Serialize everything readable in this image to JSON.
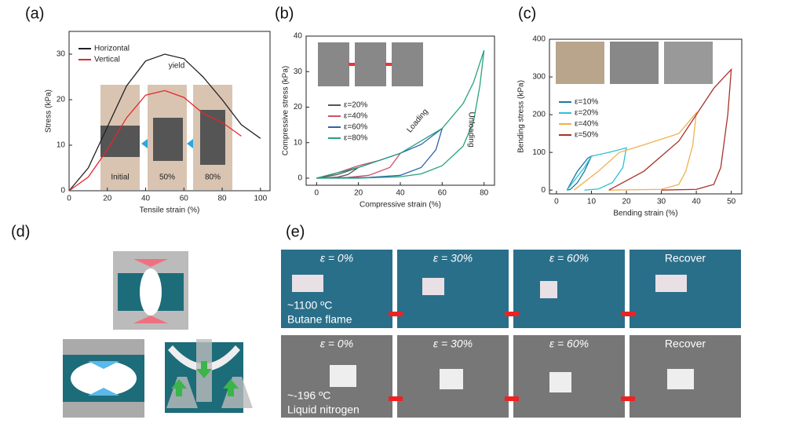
{
  "chart_data": [
    {
      "type": "line",
      "panel_label": "(a)",
      "x_label": "Tensile strain (%)",
      "y_label": "Stress (kPa)",
      "x": [
        0,
        10,
        20,
        30,
        40,
        50,
        60,
        70,
        80,
        90,
        100
      ],
      "series": [
        {
          "name": "Horizontal",
          "color": "#222222",
          "values": [
            0,
            5,
            14,
            23,
            28.5,
            30,
            29,
            25,
            20,
            14.5,
            11.5
          ]
        },
        {
          "name": "Vertical",
          "color": "#e8262b",
          "values": [
            0,
            3,
            9,
            16,
            21,
            22,
            20.5,
            17,
            15,
            12,
            null
          ]
        }
      ],
      "xlim": [
        0,
        105
      ],
      "ylim": [
        0,
        35
      ],
      "xticks": [
        0,
        20,
        40,
        60,
        80,
        100
      ],
      "yticks": [
        0,
        10,
        20,
        30
      ],
      "annotations": [
        "yield"
      ],
      "inset_labels": [
        "Initial",
        "50%",
        "80%"
      ]
    },
    {
      "type": "line",
      "panel_label": "(b)",
      "x_label": "Compressive strain (%)",
      "y_label": "Compressive stress (kPa)",
      "series": [
        {
          "name": "ε=20%",
          "color": "#555555",
          "x": [
            0,
            10,
            20,
            15,
            10,
            0
          ],
          "values": [
            0,
            1,
            3,
            1,
            0.3,
            0
          ]
        },
        {
          "name": "ε=40%",
          "color": "#d0506a",
          "x": [
            0,
            10,
            20,
            30,
            40,
            35,
            25,
            15,
            0
          ],
          "values": [
            0,
            1.5,
            3.5,
            5,
            7,
            3,
            0.8,
            0.2,
            0
          ]
        },
        {
          "name": "ε=60%",
          "color": "#2e62b0",
          "x": [
            0,
            20,
            40,
            50,
            60,
            57,
            50,
            40,
            25,
            0
          ],
          "values": [
            0,
            3,
            7,
            9.5,
            14,
            8,
            3,
            0.8,
            0.2,
            0
          ]
        },
        {
          "name": "ε=80%",
          "color": "#26a17f",
          "x": [
            0,
            20,
            40,
            60,
            70,
            75,
            80,
            78,
            75,
            70,
            60,
            50,
            40,
            20,
            0
          ],
          "values": [
            0,
            3,
            7,
            14,
            21,
            27,
            36,
            26,
            16,
            9,
            3.5,
            1.2,
            0.4,
            0,
            0
          ]
        }
      ],
      "xlim": [
        -5,
        85
      ],
      "ylim": [
        -2,
        40
      ],
      "xticks": [
        0,
        20,
        40,
        60,
        80
      ],
      "yticks": [
        0,
        10,
        20,
        30,
        40
      ],
      "annotations": [
        "Loading",
        "Unloading"
      ]
    },
    {
      "type": "line",
      "panel_label": "(c)",
      "x_label": "Bending strain (%)",
      "y_label": "Bending stress (kPa)",
      "series": [
        {
          "name": "ε=10%",
          "color": "#1b7a9e",
          "x": [
            3,
            6,
            9,
            10,
            8,
            6,
            4,
            3
          ],
          "values": [
            0,
            50,
            85,
            90,
            50,
            20,
            2,
            0
          ]
        },
        {
          "name": "ε=20%",
          "color": "#2fc0d6",
          "x": [
            3,
            8,
            10,
            15,
            20,
            19,
            16,
            12,
            8
          ],
          "values": [
            0,
            60,
            90,
            100,
            112,
            60,
            20,
            3,
            0
          ]
        },
        {
          "name": "ε=40%",
          "color": "#f0b050",
          "x": [
            5,
            12,
            18,
            25,
            35,
            40,
            39,
            37,
            35,
            30,
            15
          ],
          "values": [
            0,
            50,
            100,
            120,
            150,
            205,
            120,
            50,
            15,
            2,
            0
          ]
        },
        {
          "name": "ε=50%",
          "color": "#a8322a",
          "x": [
            15,
            25,
            35,
            40,
            45,
            50,
            49,
            47,
            45,
            40,
            30
          ],
          "values": [
            0,
            50,
            130,
            200,
            270,
            320,
            200,
            60,
            15,
            2,
            0
          ]
        }
      ],
      "xlim": [
        -2,
        53
      ],
      "ylim": [
        -10,
        400
      ],
      "xticks": [
        0,
        10,
        20,
        30,
        40,
        50
      ],
      "yticks": [
        0,
        100,
        200,
        300,
        400
      ]
    }
  ],
  "diagram": {
    "panel_label": "(d)"
  },
  "photos": {
    "panel_label": "(e)",
    "columns": [
      "ε = 0%",
      "ε = 30%",
      "ε = 60%",
      "Recover"
    ],
    "rows": [
      {
        "temperature": "~1100 ºC",
        "medium": "Butane flame"
      },
      {
        "temperature": "~-196 ºC",
        "medium": "Liquid nitrogen"
      }
    ]
  }
}
